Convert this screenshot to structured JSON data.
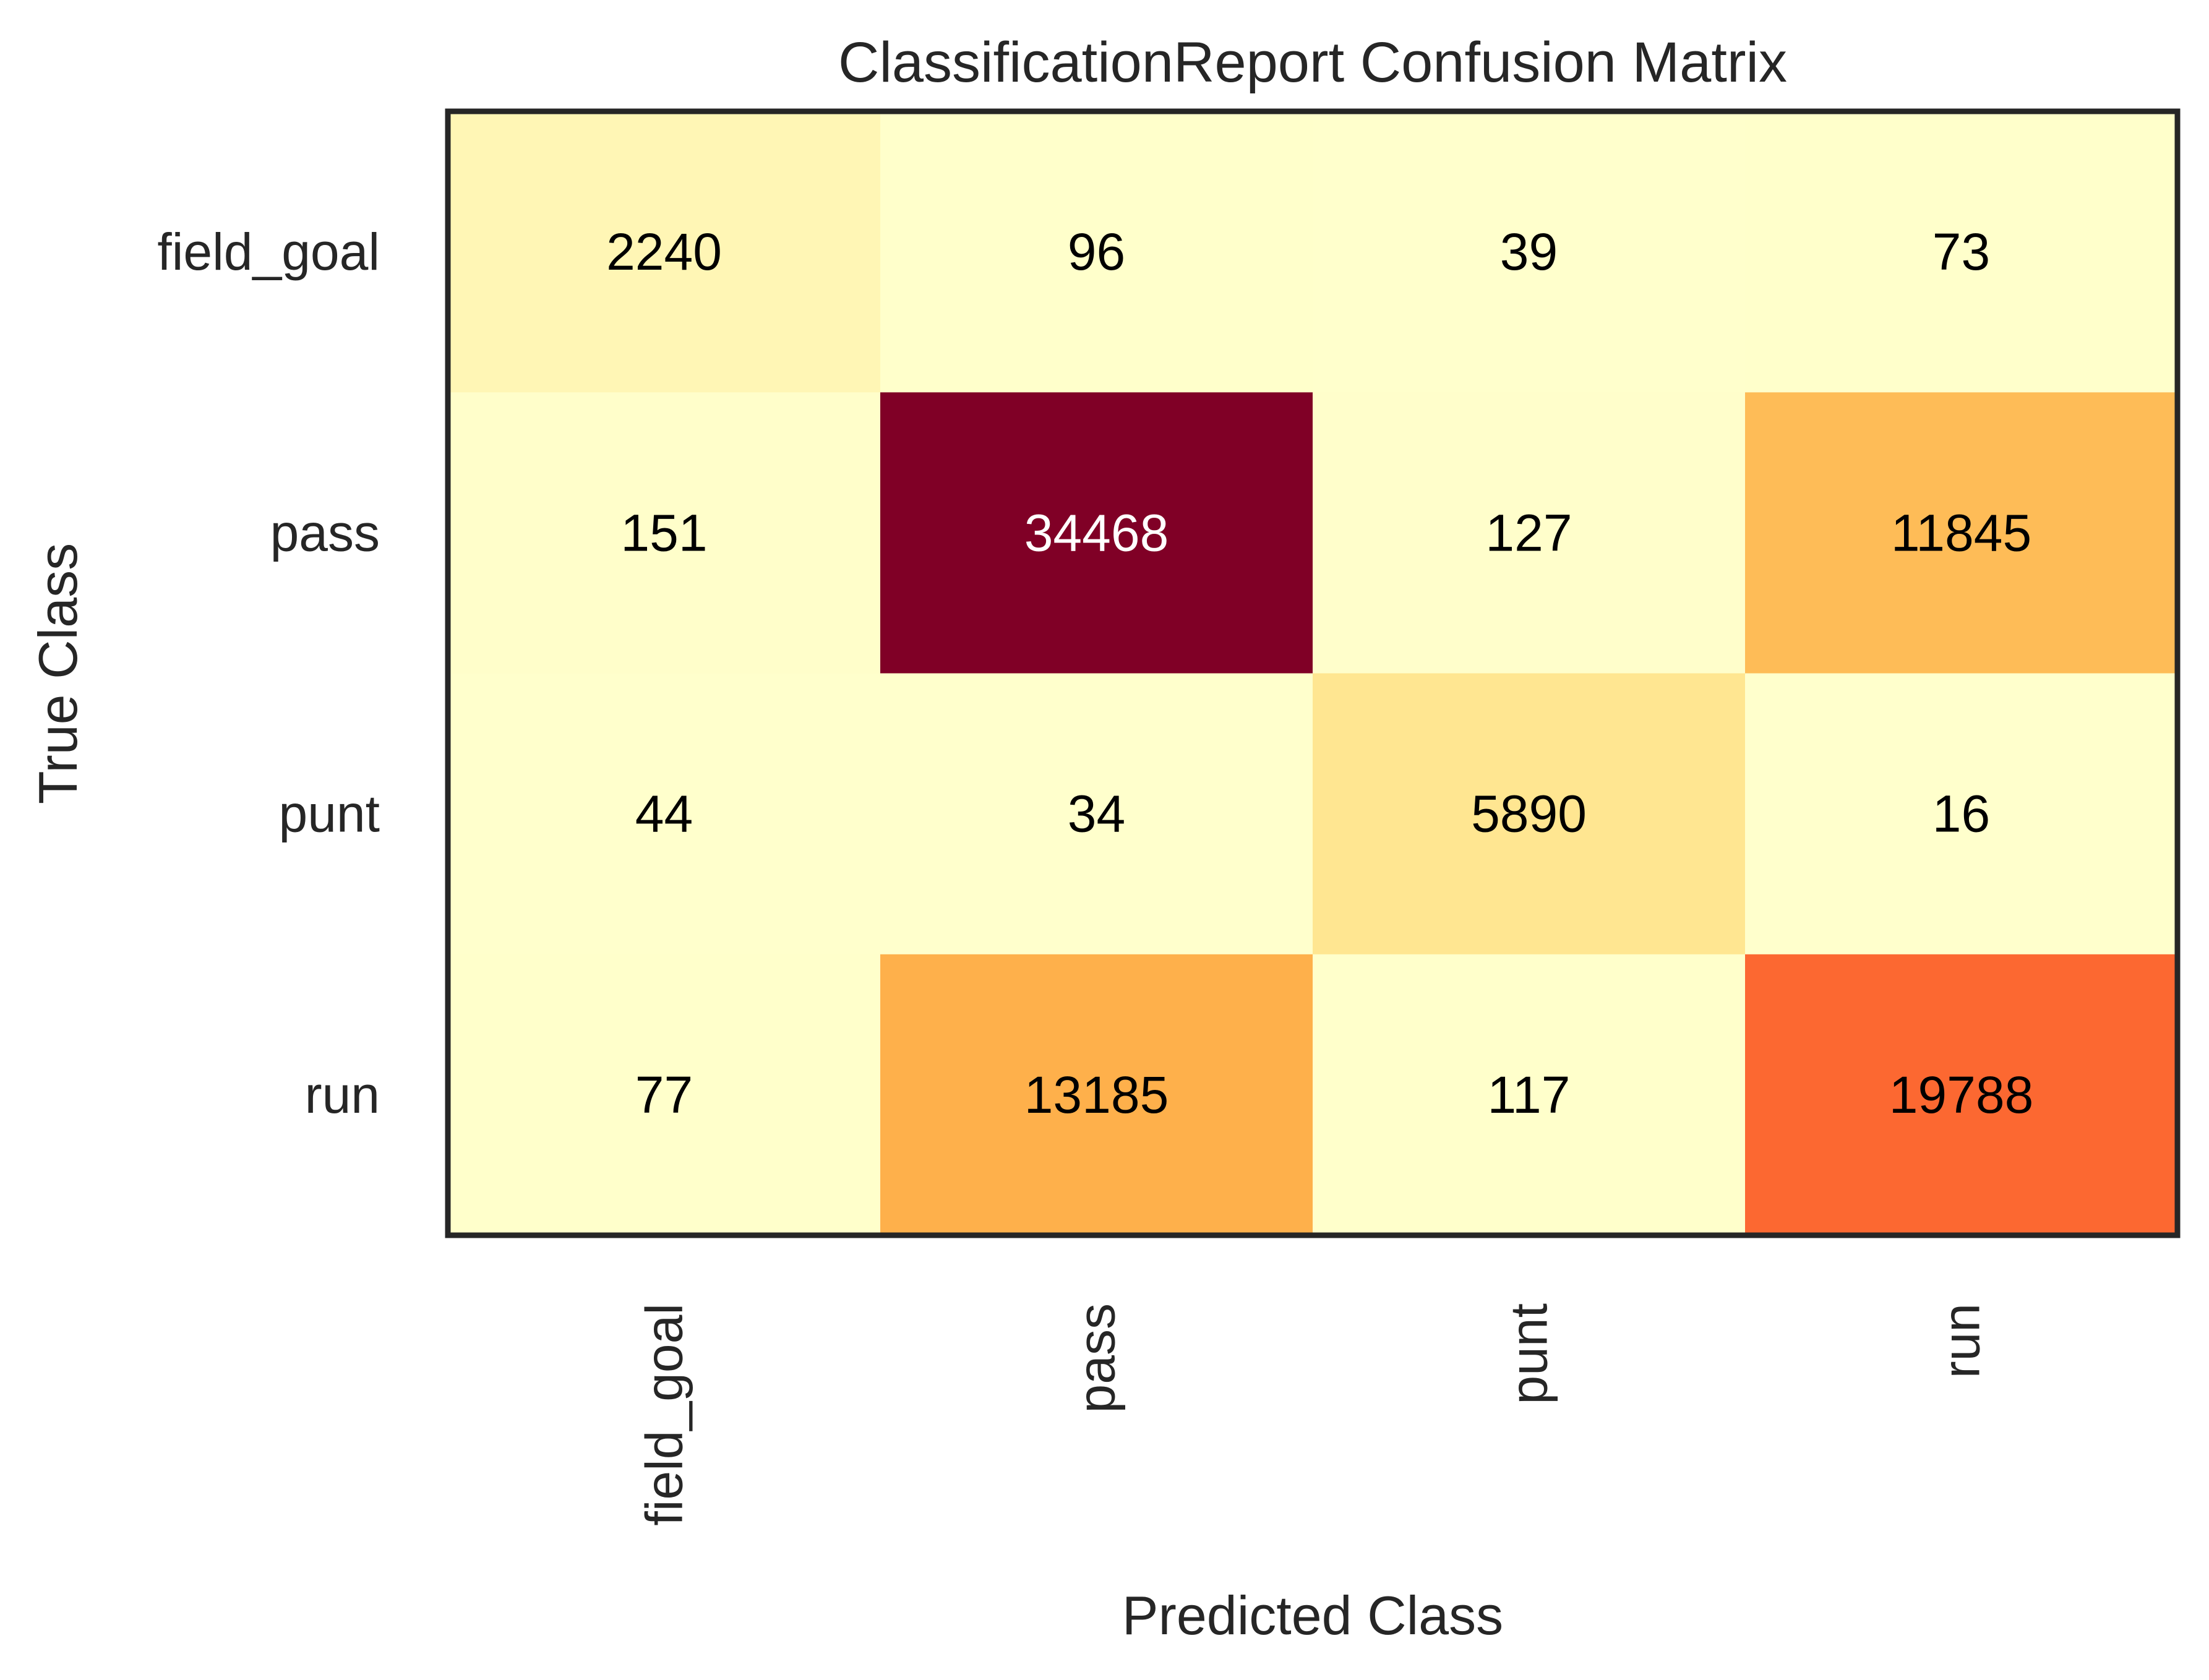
{
  "chart_data": {
    "type": "heatmap",
    "title": "ClassificationReport Confusion Matrix",
    "xlabel": "Predicted Class",
    "ylabel": "True Class",
    "x_categories": [
      "field_goal",
      "pass",
      "punt",
      "run"
    ],
    "y_categories": [
      "field_goal",
      "pass",
      "punt",
      "run"
    ],
    "values": [
      [
        2240,
        96,
        39,
        73
      ],
      [
        151,
        34468,
        127,
        11845
      ],
      [
        44,
        34,
        5890,
        16
      ],
      [
        77,
        13185,
        117,
        19788
      ]
    ],
    "colormap": "YlOrRd",
    "value_range": [
      0,
      34468
    ],
    "grid": false
  }
}
